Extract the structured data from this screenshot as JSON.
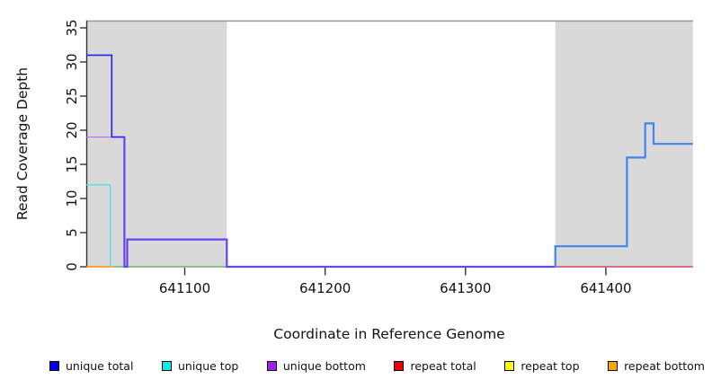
{
  "chart_data": {
    "type": "line",
    "subtype": "step-coverage",
    "title": "",
    "xlabel": "Coordinate in Reference Genome",
    "ylabel": "Read Coverage Depth",
    "xlim": [
      641030,
      641462
    ],
    "ylim": [
      0,
      36
    ],
    "x_ticks": [
      641100,
      641200,
      641300,
      641400
    ],
    "y_ticks": [
      0,
      5,
      10,
      15,
      20,
      25,
      30,
      35
    ],
    "grid": false,
    "background_color": "#ffffff",
    "region_shading": {
      "color": "#d9d9d9",
      "regions": [
        {
          "name": "left-repeat-region",
          "x_start": 641030,
          "x_end": 641130
        },
        {
          "name": "right-repeat-region",
          "x_start": 641364,
          "x_end": 641462
        }
      ]
    },
    "top_boundary_line": {
      "y": 36,
      "color": "#999999",
      "width": 1.5
    },
    "legend": {
      "position": "bottom",
      "entries": [
        {
          "label": "unique total",
          "color": "#0000ee"
        },
        {
          "label": "unique top",
          "color": "#00eeee"
        },
        {
          "label": "unique bottom",
          "color": "#a020f0"
        },
        {
          "label": "repeat total",
          "color": "#ee0000"
        },
        {
          "label": "repeat top",
          "color": "#ffff00"
        },
        {
          "label": "repeat bottom",
          "color": "#ffa500"
        }
      ]
    },
    "series": [
      {
        "name": "green-baseline-overlap",
        "color": "#66b466",
        "width": 1.6,
        "points": [
          [
            641049,
            0
          ],
          [
            641131,
            0
          ]
        ]
      },
      {
        "name": "repeat-bottom-baseline",
        "color": "#ff9d20",
        "width": 1.8,
        "points": [
          [
            641030,
            0
          ],
          [
            641049,
            0
          ]
        ]
      },
      {
        "name": "repeat-total-baseline",
        "color": "#cc4862",
        "width": 1.4,
        "points": [
          [
            641364,
            0
          ],
          [
            641462,
            0
          ]
        ]
      },
      {
        "name": "unique-top",
        "color": "#55e0e8",
        "width": 1.3,
        "points": [
          [
            641030,
            12
          ],
          [
            641047,
            12
          ],
          [
            641047,
            0
          ]
        ]
      },
      {
        "name": "unique-bottom-exposed",
        "color": "#bb77ee",
        "width": 1.3,
        "points": [
          [
            641030,
            19
          ],
          [
            641048,
            19
          ]
        ]
      },
      {
        "name": "unique-total-left",
        "color": "#2222ee",
        "width": 1.6,
        "points": [
          [
            641030,
            31
          ],
          [
            641048,
            31
          ],
          [
            641048,
            19
          ],
          [
            641057,
            19
          ],
          [
            641057,
            0
          ]
        ]
      },
      {
        "name": "unique-total-bottom-overlap",
        "color": "#6644ee",
        "width": 2.2,
        "points": [
          [
            641057,
            19
          ],
          [
            641057,
            0
          ],
          [
            641059,
            0
          ],
          [
            641059,
            4
          ],
          [
            641130,
            4
          ],
          [
            641130,
            0
          ],
          [
            641364,
            0
          ]
        ]
      },
      {
        "name": "unique-total-right",
        "color": "#4284f0",
        "width": 2.2,
        "points": [
          [
            641364,
            0
          ],
          [
            641364,
            3
          ],
          [
            641415,
            3
          ],
          [
            641415,
            16
          ],
          [
            641428,
            16
          ],
          [
            641428,
            21
          ],
          [
            641434,
            21
          ],
          [
            641434,
            18
          ],
          [
            641462,
            18
          ]
        ]
      }
    ]
  }
}
